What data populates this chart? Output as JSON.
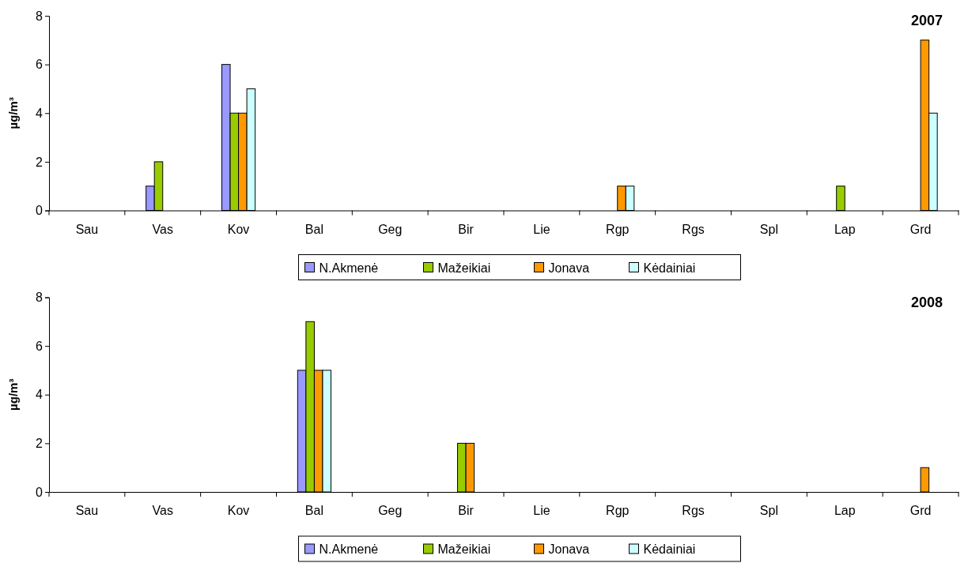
{
  "chart_data": [
    {
      "type": "bar",
      "title": "2007",
      "ylabel": "µg/m³",
      "categories": [
        "Sau",
        "Vas",
        "Kov",
        "Bal",
        "Geg",
        "Bir",
        "Lie",
        "Rgp",
        "Rgs",
        "Spl",
        "Lap",
        "Grd"
      ],
      "ylim": [
        0,
        8
      ],
      "yticks": [
        0,
        2,
        4,
        6,
        8
      ],
      "legend": "bottom",
      "series": [
        {
          "name": "N.Akmenė",
          "color": "#9999ff",
          "values": [
            0,
            1,
            6,
            0,
            0,
            0,
            0,
            0,
            0,
            0,
            0,
            0
          ]
        },
        {
          "name": "Mažeikiai",
          "color": "#99cc00",
          "values": [
            0,
            2,
            4,
            0,
            0,
            0,
            0,
            0,
            0,
            0,
            1,
            0
          ]
        },
        {
          "name": "Jonava",
          "color": "#ff9900",
          "values": [
            0,
            0,
            4,
            0,
            0,
            0,
            0,
            1,
            0,
            0,
            0,
            7
          ]
        },
        {
          "name": "Kėdainiai",
          "color": "#ccffff",
          "values": [
            0,
            0,
            5,
            0,
            0,
            0,
            0,
            1,
            0,
            0,
            0,
            4
          ]
        }
      ]
    },
    {
      "type": "bar",
      "title": "2008",
      "ylabel": "µg/m³",
      "categories": [
        "Sau",
        "Vas",
        "Kov",
        "Bal",
        "Geg",
        "Bir",
        "Lie",
        "Rgp",
        "Rgs",
        "Spl",
        "Lap",
        "Grd"
      ],
      "ylim": [
        0,
        8
      ],
      "yticks": [
        0,
        2,
        4,
        6,
        8
      ],
      "legend": "bottom",
      "series": [
        {
          "name": "N.Akmenė",
          "color": "#9999ff",
          "values": [
            0,
            0,
            0,
            5,
            0,
            0,
            0,
            0,
            0,
            0,
            0,
            0
          ]
        },
        {
          "name": "Mažeikiai",
          "color": "#99cc00",
          "values": [
            0,
            0,
            0,
            7,
            0,
            2,
            0,
            0,
            0,
            0,
            0,
            0
          ]
        },
        {
          "name": "Jonava",
          "color": "#ff9900",
          "values": [
            0,
            0,
            0,
            5,
            0,
            2,
            0,
            0,
            0,
            0,
            0,
            1
          ]
        },
        {
          "name": "Kėdainiai",
          "color": "#ccffff",
          "values": [
            0,
            0,
            0,
            5,
            0,
            0,
            0,
            0,
            0,
            0,
            0,
            0
          ]
        }
      ]
    }
  ]
}
